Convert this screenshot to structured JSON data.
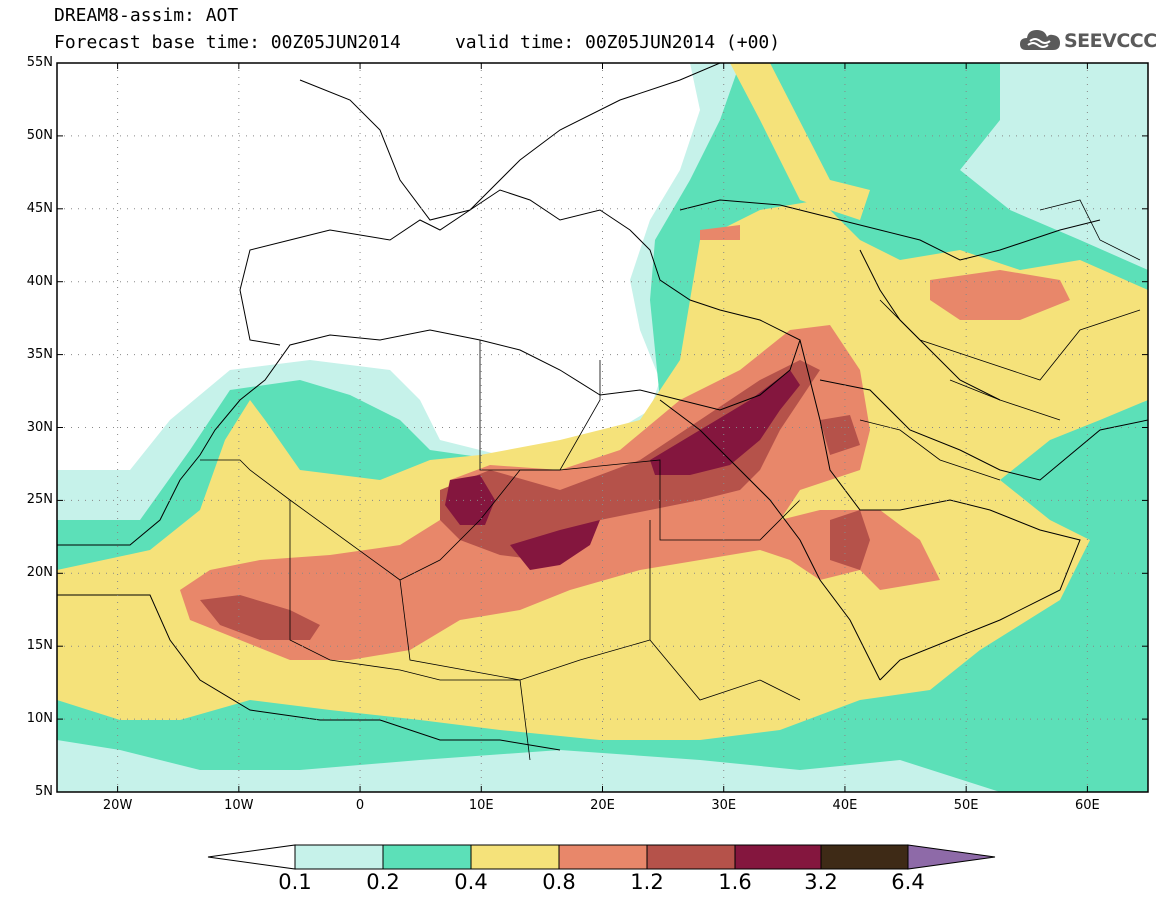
{
  "title": {
    "line1": "DREAM8-assim: AOT",
    "line2": "Forecast base time: 00Z05JUN2014     valid time: 00Z05JUN2014 (+00)"
  },
  "logo": {
    "text": "SEEVCCC",
    "icon": "cloud-icon"
  },
  "map": {
    "lon_range": [
      -25,
      65
    ],
    "lat_range": [
      5,
      55
    ],
    "lat_ticks": [
      "55N",
      "50N",
      "45N",
      "40N",
      "35N",
      "30N",
      "25N",
      "20N",
      "15N",
      "10N",
      "5N"
    ],
    "lon_ticks": [
      "20W",
      "10W",
      "0",
      "10E",
      "20E",
      "30E",
      "40E",
      "50E",
      "60E"
    ],
    "grid": true
  },
  "colorbar": {
    "labels": [
      "0.1",
      "0.2",
      "0.4",
      "0.8",
      "1.2",
      "1.6",
      "3.2",
      "6.4"
    ],
    "colors": [
      "#ffffff",
      "#c6f2ea",
      "#5ce0b8",
      "#f5e27a",
      "#e8876a",
      "#b5524a",
      "#84163e",
      "#3e2a16",
      "#8e6aa8"
    ]
  }
}
